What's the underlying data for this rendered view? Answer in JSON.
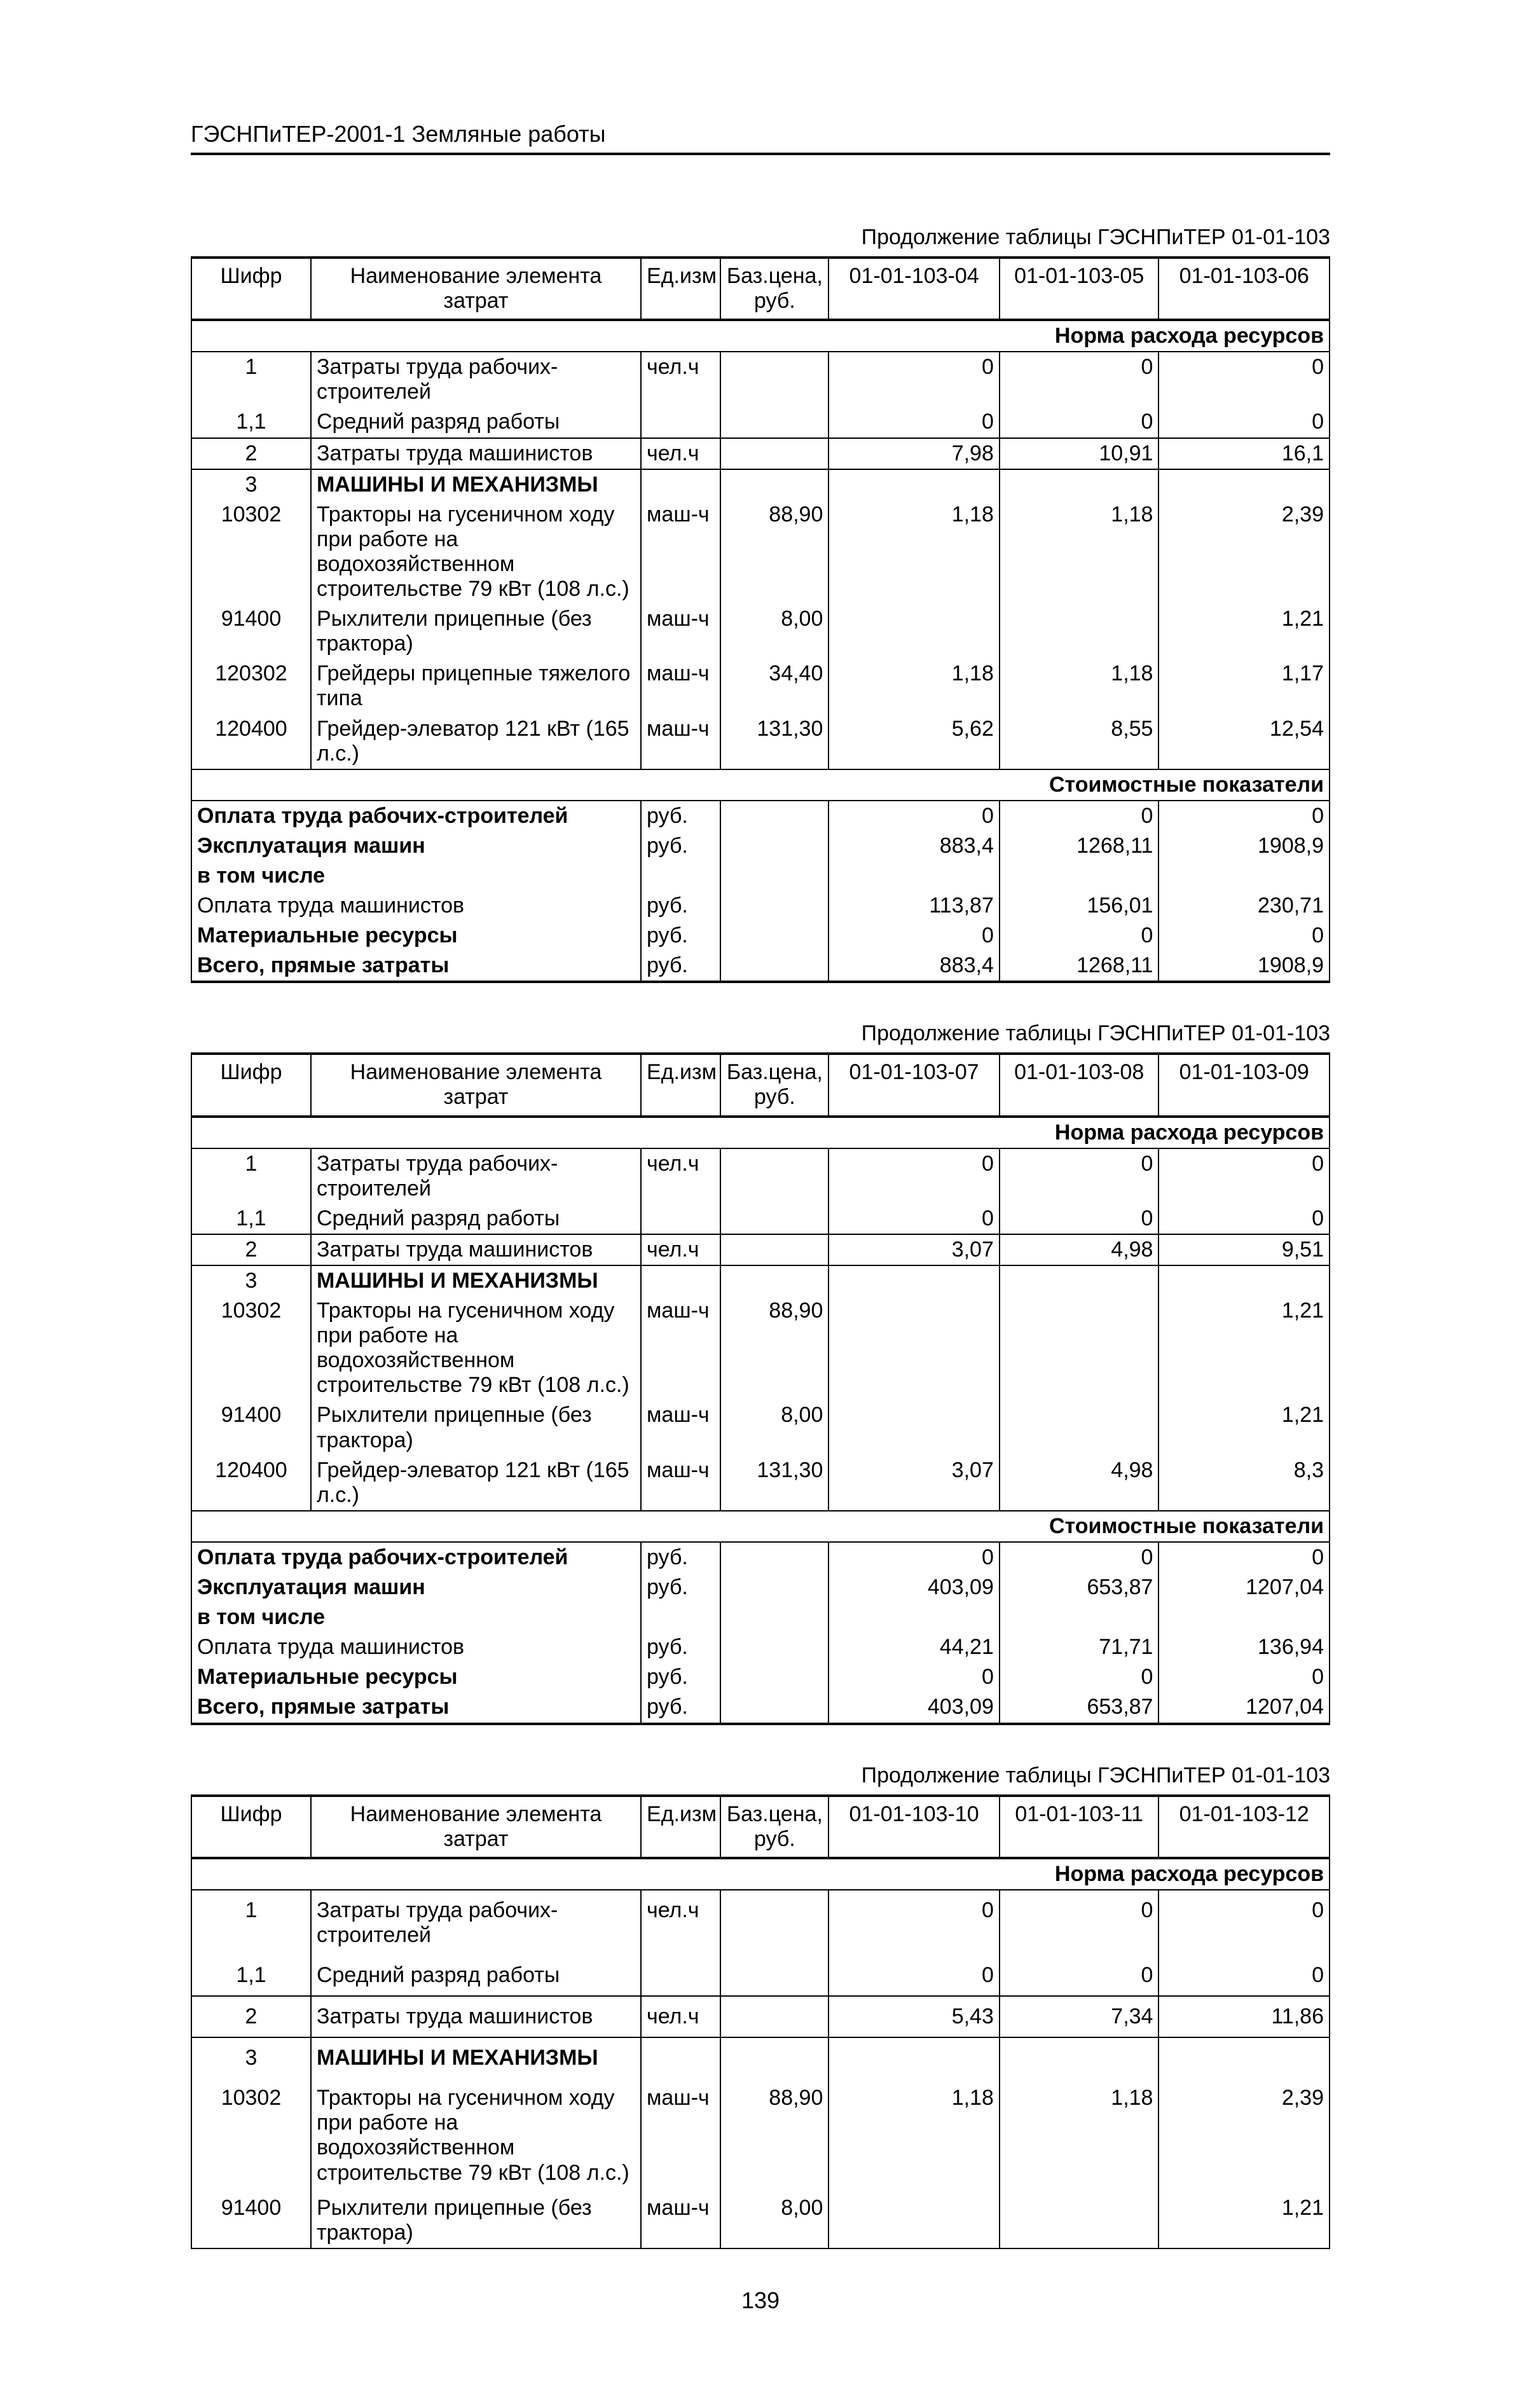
{
  "doc_header": "ГЭСНПиТЕР-2001-1 Земляные работы",
  "page_number": "139",
  "continuation_prefix": "Продолжение таблицы ГЭСНПиТЕР 01-01-103",
  "head": {
    "shifr": "Шифр",
    "name": "Наименование элемента затрат",
    "unit": "Ед.изм",
    "price": "Баз.цена, руб."
  },
  "caption_norm": "Норма расхода ресурсов",
  "caption_cost": "Стоимостные показатели",
  "tables": [
    {
      "cols": [
        "01-01-103-04",
        "01-01-103-05",
        "01-01-103-06"
      ],
      "rows_norm": [
        {
          "shifr": "1",
          "name": "Затраты труда рабочих-строителей",
          "unit": "чел.ч",
          "price": "",
          "v": [
            "0",
            "0",
            "0"
          ]
        },
        {
          "shifr": "1,1",
          "name": "Средний разряд работы",
          "unit": "",
          "price": "",
          "v": [
            "0",
            "0",
            "0"
          ]
        },
        {
          "shifr": "2",
          "name": "Затраты труда машинистов",
          "unit": "чел.ч",
          "price": "",
          "v": [
            "7,98",
            "10,91",
            "16,1"
          ],
          "bb": true,
          "bt": true
        },
        {
          "shifr": "3",
          "name": "МАШИНЫ И МЕХАНИЗМЫ",
          "unit": "",
          "price": "",
          "v": [
            "",
            "",
            ""
          ],
          "bold": true
        },
        {
          "shifr": "10302",
          "name": "Тракторы на гусеничном ходу при работе на водохозяйственном строительстве 79 кВт (108 л.с.)",
          "unit": "маш-ч",
          "price": "88,90",
          "v": [
            "1,18",
            "1,18",
            "2,39"
          ]
        },
        {
          "shifr": "91400",
          "name": "Рыхлители прицепные (без трактора)",
          "unit": "маш-ч",
          "price": "8,00",
          "v": [
            "",
            "",
            "1,21"
          ]
        },
        {
          "shifr": "120302",
          "name": "Грейдеры прицепные тяжелого типа",
          "unit": "маш-ч",
          "price": "34,40",
          "v": [
            "1,18",
            "1,18",
            "1,17"
          ]
        },
        {
          "shifr": "120400",
          "name": "Грейдер-элеватор 121 кВт (165 л.с.)",
          "unit": "маш-ч",
          "price": "131,30",
          "v": [
            "5,62",
            "8,55",
            "12,54"
          ]
        }
      ],
      "rows_cost": [
        {
          "label": "Оплата труда рабочих-строителей",
          "unit": "руб.",
          "v": [
            "0",
            "0",
            "0"
          ],
          "bold": true
        },
        {
          "label": "Эксплуатация машин",
          "unit": "руб.",
          "v": [
            "883,4",
            "1268,11",
            "1908,9"
          ],
          "bold": true
        },
        {
          "label": "в том числе",
          "unit": "",
          "v": [
            "",
            "",
            ""
          ],
          "bold": true
        },
        {
          "label": "Оплата труда машинистов",
          "unit": "руб.",
          "v": [
            "113,87",
            "156,01",
            "230,71"
          ]
        },
        {
          "label": "Материальные ресурсы",
          "unit": "руб.",
          "v": [
            "0",
            "0",
            "0"
          ],
          "bold": true
        },
        {
          "label": "Всего, прямые затраты",
          "unit": "руб.",
          "v": [
            "883,4",
            "1268,11",
            "1908,9"
          ],
          "bold": true
        }
      ]
    },
    {
      "cols": [
        "01-01-103-07",
        "01-01-103-08",
        "01-01-103-09"
      ],
      "rows_norm": [
        {
          "shifr": "1",
          "name": "Затраты труда рабочих-строителей",
          "unit": "чел.ч",
          "price": "",
          "v": [
            "0",
            "0",
            "0"
          ]
        },
        {
          "shifr": "1,1",
          "name": "Средний разряд работы",
          "unit": "",
          "price": "",
          "v": [
            "0",
            "0",
            "0"
          ]
        },
        {
          "shifr": "2",
          "name": "Затраты труда машинистов",
          "unit": "чел.ч",
          "price": "",
          "v": [
            "3,07",
            "4,98",
            "9,51"
          ],
          "bb": true,
          "bt": true
        },
        {
          "shifr": "3",
          "name": "МАШИНЫ И МЕХАНИЗМЫ",
          "unit": "",
          "price": "",
          "v": [
            "",
            "",
            ""
          ],
          "bold": true
        },
        {
          "shifr": "10302",
          "name": "Тракторы на гусеничном ходу при работе на водохозяйственном строительстве 79 кВт (108 л.с.)",
          "unit": "маш-ч",
          "price": "88,90",
          "v": [
            "",
            "",
            "1,21"
          ]
        },
        {
          "shifr": "91400",
          "name": "Рыхлители прицепные (без трактора)",
          "unit": "маш-ч",
          "price": "8,00",
          "v": [
            "",
            "",
            "1,21"
          ]
        },
        {
          "shifr": "120400",
          "name": "Грейдер-элеватор 121 кВт (165 л.с.)",
          "unit": "маш-ч",
          "price": "131,30",
          "v": [
            "3,07",
            "4,98",
            "8,3"
          ]
        }
      ],
      "rows_cost": [
        {
          "label": "Оплата труда рабочих-строителей",
          "unit": "руб.",
          "v": [
            "0",
            "0",
            "0"
          ],
          "bold": true
        },
        {
          "label": "Эксплуатация машин",
          "unit": "руб.",
          "v": [
            "403,09",
            "653,87",
            "1207,04"
          ],
          "bold": true
        },
        {
          "label": "в том числе",
          "unit": "",
          "v": [
            "",
            "",
            ""
          ],
          "bold": true
        },
        {
          "label": "Оплата труда машинистов",
          "unit": "руб.",
          "v": [
            "44,21",
            "71,71",
            "136,94"
          ]
        },
        {
          "label": "Материальные ресурсы",
          "unit": "руб.",
          "v": [
            "0",
            "0",
            "0"
          ],
          "bold": true
        },
        {
          "label": "Всего, прямые затраты",
          "unit": "руб.",
          "v": [
            "403,09",
            "653,87",
            "1207,04"
          ],
          "bold": true
        }
      ]
    },
    {
      "cols": [
        "01-01-103-10",
        "01-01-103-11",
        "01-01-103-12"
      ],
      "partial": true,
      "rows_norm": [
        {
          "shifr": "1",
          "name": "Затраты труда рабочих-строителей",
          "unit": "чел.ч",
          "price": "",
          "v": [
            "0",
            "0",
            "0"
          ],
          "pad": true
        },
        {
          "shifr": "1,1",
          "name": "Средний разряд работы",
          "unit": "",
          "price": "",
          "v": [
            "0",
            "0",
            "0"
          ],
          "pad": true
        },
        {
          "shifr": "2",
          "name": "Затраты труда машинистов",
          "unit": "чел.ч",
          "price": "",
          "v": [
            "5,43",
            "7,34",
            "11,86"
          ],
          "bb": true,
          "bt": true,
          "pad": true
        },
        {
          "shifr": "3",
          "name": "МАШИНЫ И МЕХАНИЗМЫ",
          "unit": "",
          "price": "",
          "v": [
            "",
            "",
            ""
          ],
          "bold": true,
          "pad": true
        },
        {
          "shifr": "10302",
          "name": "Тракторы на гусеничном ходу при работе на водохозяйственном строительстве 79 кВт (108 л.с.)",
          "unit": "маш-ч",
          "price": "88,90",
          "v": [
            "1,18",
            "1,18",
            "2,39"
          ],
          "pad": true
        },
        {
          "shifr": "91400",
          "name": "Рыхлители прицепные (без трактора)",
          "unit": "маш-ч",
          "price": "8,00",
          "v": [
            "",
            "",
            "1,21"
          ]
        }
      ],
      "rows_cost": []
    }
  ]
}
